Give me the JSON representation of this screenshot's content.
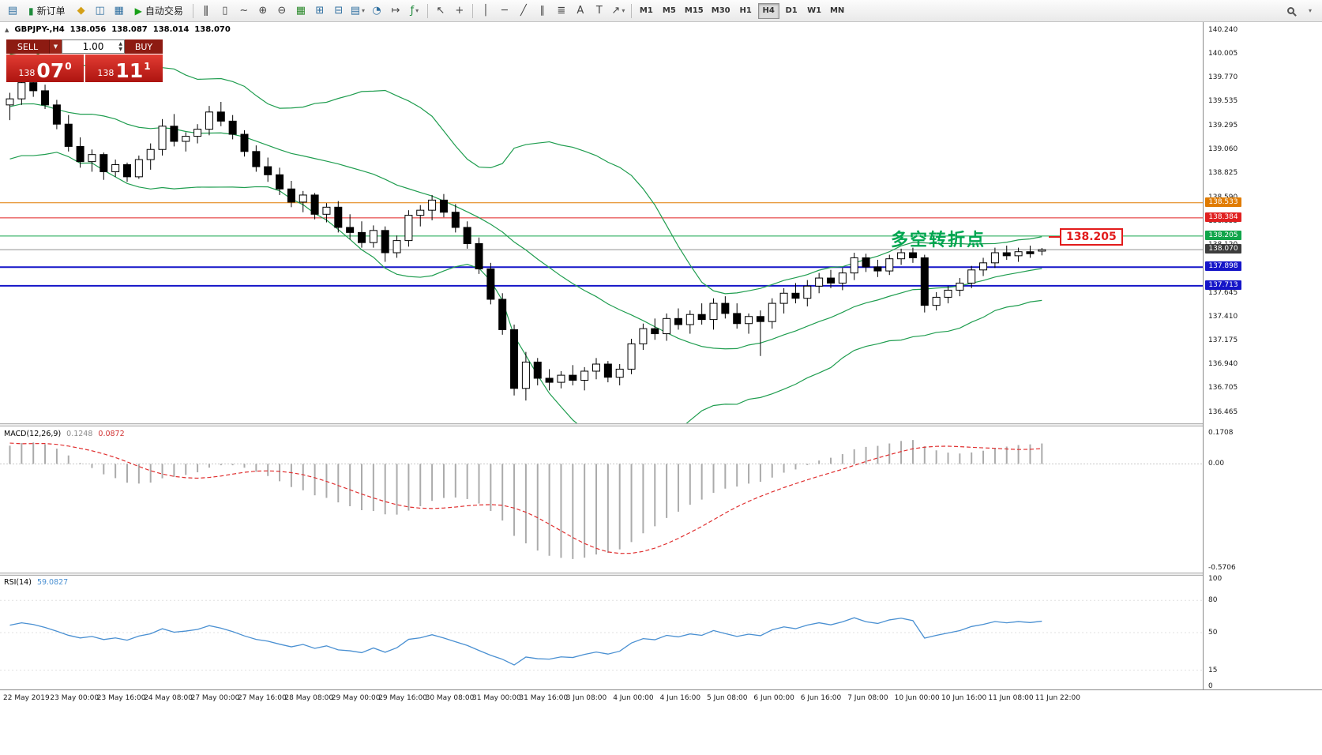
{
  "toolbar": {
    "items": [
      {
        "t": "icon",
        "name": "new-chart-icon",
        "g": "▤",
        "c": "#2f6fa0"
      },
      {
        "t": "btn",
        "name": "new-order-button",
        "g": "▮",
        "c": "#1d8a3a",
        "label": "新订单"
      },
      {
        "t": "icon",
        "name": "mail-icon",
        "g": "◆",
        "c": "#d4a017"
      },
      {
        "t": "icon",
        "name": "market-watch-icon",
        "g": "◫",
        "c": "#2f6fa0"
      },
      {
        "t": "icon",
        "name": "navigator-icon",
        "g": "▦",
        "c": "#2f6fa0"
      },
      {
        "t": "btn",
        "name": "autotrading-button",
        "g": "▶",
        "c": "#18a018",
        "label": "自动交易"
      },
      {
        "t": "sep"
      },
      {
        "t": "icon",
        "name": "bar-chart-icon",
        "g": "ǁ",
        "c": "#444444"
      },
      {
        "t": "icon",
        "name": "candlestick-chart-icon",
        "g": "▯",
        "c": "#444444"
      },
      {
        "t": "icon",
        "name": "line-chart-icon",
        "g": "~",
        "c": "#444444"
      },
      {
        "t": "icon",
        "name": "zoom-in-icon",
        "g": "⊕",
        "c": "#444444"
      },
      {
        "t": "icon",
        "name": "zoom-out-icon",
        "g": "⊖",
        "c": "#444444"
      },
      {
        "t": "icon",
        "name": "grid-icon",
        "g": "▦",
        "c": "#2e8b2e"
      },
      {
        "t": "icon",
        "name": "tile-windows-icon",
        "g": "⊞",
        "c": "#2f6fa0"
      },
      {
        "t": "icon",
        "name": "cascade-windows-icon",
        "g": "⊟",
        "c": "#2f6fa0"
      },
      {
        "t": "icon",
        "name": "new-window-icon",
        "g": "▤",
        "c": "#2f6fa0",
        "dd": true
      },
      {
        "t": "icon",
        "name": "autoscroll-icon",
        "g": "◔",
        "c": "#2f6fa0"
      },
      {
        "t": "icon",
        "name": "chart-shift-icon",
        "g": "↦",
        "c": "#444444"
      },
      {
        "t": "icon",
        "name": "indicators-icon",
        "g": "ƒ",
        "c": "#1d8a3a",
        "dd": true
      },
      {
        "t": "sep"
      },
      {
        "t": "icon",
        "name": "cursor-icon",
        "g": "↖",
        "c": "#444444"
      },
      {
        "t": "icon",
        "name": "crosshair-icon",
        "g": "+",
        "c": "#444444"
      },
      {
        "t": "sep"
      },
      {
        "t": "icon",
        "name": "vertical-line-icon",
        "g": "│",
        "c": "#444444"
      },
      {
        "t": "icon",
        "name": "horizontal-line-icon",
        "g": "─",
        "c": "#444444"
      },
      {
        "t": "icon",
        "name": "trendline-icon",
        "g": "╱",
        "c": "#444444"
      },
      {
        "t": "icon",
        "name": "channel-icon",
        "g": "∥",
        "c": "#444444"
      },
      {
        "t": "icon",
        "name": "fibonacci-icon",
        "g": "≣",
        "c": "#444444"
      },
      {
        "t": "icon",
        "name": "text-icon",
        "g": "A",
        "c": "#444444"
      },
      {
        "t": "icon",
        "name": "label-icon",
        "g": "T",
        "c": "#444444"
      },
      {
        "t": "icon",
        "name": "arrows-icon",
        "g": "↗",
        "c": "#444444",
        "dd": true
      },
      {
        "t": "sep"
      }
    ],
    "timeframes": {
      "items": [
        "M1",
        "M5",
        "M15",
        "M30",
        "H1",
        "H4",
        "D1",
        "W1",
        "MN"
      ],
      "active": "H4"
    }
  },
  "symbol_info": {
    "symbol": "GBPJPY-,H4",
    "open": "138.056",
    "high": "138.087",
    "low": "138.014",
    "close": "138.070"
  },
  "one_click": {
    "sell_label": "SELL",
    "buy_label": "BUY",
    "volume": "1.00",
    "bid": {
      "prefix": "138",
      "main": "07",
      "sup": "0"
    },
    "ask": {
      "prefix": "138",
      "main": "11",
      "sup": "1"
    }
  },
  "annotation": {
    "text": "多空转折点",
    "color": "#00A650"
  },
  "callout": {
    "text": "138.205",
    "color": "#E21B1B"
  },
  "chart_data": {
    "type": "candlestick",
    "symbol": "GBPJPY-",
    "timeframe": "H4",
    "style": {
      "up_fill": "#FFFFFF",
      "down_fill": "#000000",
      "outline": "#000000",
      "bg": "#FFFFFF"
    },
    "price_axis": {
      "view_max": 140.318,
      "view_min": 136.355,
      "ticks": [
        "140.240",
        "140.005",
        "139.770",
        "139.535",
        "139.295",
        "139.060",
        "138.825",
        "138.590",
        "138.355",
        "138.120",
        "137.885",
        "137.645",
        "137.410",
        "137.175",
        "136.940",
        "136.705",
        "136.465"
      ]
    },
    "price_labels": [
      {
        "text": "138.533",
        "price": 138.533,
        "color": "#E07B00"
      },
      {
        "text": "138.384",
        "price": 138.384,
        "color": "#E02020"
      },
      {
        "text": "138.205",
        "price": 138.205,
        "color": "#10A54A"
      },
      {
        "text": "138.070",
        "price": 138.07,
        "color": "#3C3C3C"
      },
      {
        "text": "137.898",
        "price": 137.898,
        "color": "#1515C8"
      },
      {
        "text": "137.713",
        "price": 137.713,
        "color": "#1515C8"
      }
    ],
    "hlines": [
      {
        "price": 138.533,
        "color": "#E07B00",
        "w": 1
      },
      {
        "price": 138.384,
        "color": "#E02020",
        "w": 1
      },
      {
        "price": 138.205,
        "color": "#10A54A",
        "w": 1
      },
      {
        "price": 138.07,
        "color": "#909090",
        "w": 1
      },
      {
        "price": 137.898,
        "color": "#1515C8",
        "w": 2
      },
      {
        "price": 137.713,
        "color": "#1515C8",
        "w": 2
      }
    ],
    "bollinger": {
      "period": 20,
      "deviation": 2,
      "color": "#1F9D4F"
    },
    "indicator_seed": [
      138.9,
      139.2,
      139.6,
      139.9,
      140.0,
      139.7,
      139.3,
      139.0,
      139.2,
      139.5,
      139.8,
      139.6,
      139.3,
      139.1,
      139.4,
      139.7,
      139.6,
      139.4,
      139.3,
      139.5
    ],
    "candles": [
      [
        139.5,
        139.62,
        139.35,
        139.56
      ],
      [
        139.56,
        139.82,
        139.5,
        139.72
      ],
      [
        139.72,
        139.78,
        139.58,
        139.64
      ],
      [
        139.64,
        139.7,
        139.46,
        139.5
      ],
      [
        139.5,
        139.55,
        139.26,
        139.31
      ],
      [
        139.31,
        139.4,
        139.04,
        139.09
      ],
      [
        139.09,
        139.18,
        138.88,
        138.94
      ],
      [
        138.94,
        139.06,
        138.84,
        139.01
      ],
      [
        139.01,
        139.03,
        138.76,
        138.84
      ],
      [
        138.84,
        138.96,
        138.79,
        138.91
      ],
      [
        138.91,
        138.93,
        138.74,
        138.79
      ],
      [
        138.79,
        139.0,
        138.77,
        138.96
      ],
      [
        138.96,
        139.12,
        138.86,
        139.06
      ],
      [
        139.06,
        139.36,
        139.0,
        139.29
      ],
      [
        139.29,
        139.41,
        139.09,
        139.14
      ],
      [
        139.14,
        139.23,
        139.04,
        139.19
      ],
      [
        139.19,
        139.31,
        139.12,
        139.26
      ],
      [
        139.26,
        139.49,
        139.2,
        139.43
      ],
      [
        139.43,
        139.53,
        139.29,
        139.34
      ],
      [
        139.34,
        139.4,
        139.16,
        139.21
      ],
      [
        139.21,
        139.25,
        138.99,
        139.04
      ],
      [
        139.04,
        139.1,
        138.84,
        138.89
      ],
      [
        138.89,
        138.98,
        138.74,
        138.81
      ],
      [
        138.81,
        138.88,
        138.61,
        138.67
      ],
      [
        138.67,
        138.75,
        138.49,
        138.54
      ],
      [
        138.54,
        138.65,
        138.44,
        138.61
      ],
      [
        138.61,
        138.63,
        138.37,
        138.42
      ],
      [
        138.42,
        138.53,
        138.34,
        138.49
      ],
      [
        138.49,
        138.55,
        138.24,
        138.29
      ],
      [
        138.29,
        138.42,
        138.17,
        138.24
      ],
      [
        138.24,
        138.35,
        138.09,
        138.14
      ],
      [
        138.14,
        138.31,
        138.09,
        138.26
      ],
      [
        138.26,
        138.3,
        137.95,
        138.04
      ],
      [
        138.04,
        138.21,
        137.99,
        138.16
      ],
      [
        138.16,
        138.46,
        138.1,
        138.41
      ],
      [
        138.41,
        138.51,
        138.3,
        138.46
      ],
      [
        138.46,
        138.61,
        138.36,
        138.56
      ],
      [
        138.56,
        138.62,
        138.39,
        138.44
      ],
      [
        138.44,
        138.52,
        138.24,
        138.29
      ],
      [
        138.29,
        138.35,
        138.08,
        138.13
      ],
      [
        138.13,
        138.19,
        137.83,
        137.88
      ],
      [
        137.88,
        137.94,
        137.53,
        137.58
      ],
      [
        137.58,
        137.64,
        137.23,
        137.28
      ],
      [
        137.28,
        137.33,
        136.63,
        136.7
      ],
      [
        136.7,
        137.06,
        136.58,
        136.96
      ],
      [
        136.96,
        137.0,
        136.73,
        136.8
      ],
      [
        136.8,
        136.89,
        136.68,
        136.76
      ],
      [
        136.76,
        136.87,
        136.7,
        136.83
      ],
      [
        136.83,
        136.93,
        136.73,
        136.78
      ],
      [
        136.78,
        136.91,
        136.68,
        136.87
      ],
      [
        136.87,
        137.0,
        136.79,
        136.94
      ],
      [
        136.94,
        136.97,
        136.76,
        136.81
      ],
      [
        136.81,
        136.94,
        136.73,
        136.89
      ],
      [
        136.89,
        137.19,
        136.84,
        137.14
      ],
      [
        137.14,
        137.34,
        137.08,
        137.29
      ],
      [
        137.29,
        137.39,
        137.18,
        137.24
      ],
      [
        137.24,
        137.44,
        137.17,
        137.39
      ],
      [
        137.39,
        137.49,
        137.28,
        137.33
      ],
      [
        137.33,
        137.47,
        137.24,
        137.43
      ],
      [
        137.43,
        137.54,
        137.33,
        137.38
      ],
      [
        137.38,
        137.59,
        137.28,
        137.54
      ],
      [
        137.54,
        137.61,
        137.39,
        137.44
      ],
      [
        137.44,
        137.54,
        137.29,
        137.34
      ],
      [
        137.34,
        137.44,
        137.24,
        137.41
      ],
      [
        137.41,
        137.47,
        137.02,
        137.36
      ],
      [
        137.36,
        137.59,
        137.29,
        137.54
      ],
      [
        137.54,
        137.69,
        137.44,
        137.64
      ],
      [
        137.64,
        137.74,
        137.54,
        137.59
      ],
      [
        137.59,
        137.77,
        137.51,
        137.71
      ],
      [
        137.71,
        137.84,
        137.64,
        137.79
      ],
      [
        137.79,
        137.87,
        137.69,
        137.74
      ],
      [
        137.74,
        137.89,
        137.67,
        137.84
      ],
      [
        137.84,
        138.04,
        137.77,
        137.99
      ],
      [
        137.99,
        138.03,
        137.85,
        137.9
      ],
      [
        137.9,
        137.97,
        137.8,
        137.86
      ],
      [
        137.86,
        138.02,
        137.82,
        137.98
      ],
      [
        137.98,
        138.08,
        137.92,
        138.04
      ],
      [
        138.04,
        138.09,
        137.94,
        137.99
      ],
      [
        137.99,
        138.02,
        137.45,
        137.52
      ],
      [
        137.52,
        137.65,
        137.47,
        137.6
      ],
      [
        137.6,
        137.71,
        137.54,
        137.67
      ],
      [
        137.67,
        137.79,
        137.61,
        137.74
      ],
      [
        137.74,
        137.91,
        137.69,
        137.87
      ],
      [
        137.87,
        137.99,
        137.81,
        137.94
      ],
      [
        137.94,
        138.09,
        137.89,
        138.04
      ],
      [
        138.04,
        138.11,
        137.97,
        138.01
      ],
      [
        138.01,
        138.09,
        137.95,
        138.05
      ],
      [
        138.05,
        138.11,
        137.99,
        138.03
      ],
      [
        138.056,
        138.087,
        138.014,
        138.07
      ]
    ],
    "time_labels": [
      "22 May 2019",
      "23 May 00:00",
      "23 May 16:00",
      "24 May 08:00",
      "27 May 00:00",
      "27 May 16:00",
      "28 May 08:00",
      "29 May 00:00",
      "29 May 16:00",
      "30 May 08:00",
      "31 May 00:00",
      "31 May 16:00",
      "3 Jun 08:00",
      "4 Jun 00:00",
      "4 Jun 16:00",
      "5 Jun 08:00",
      "6 Jun 00:00",
      "6 Jun 16:00",
      "7 Jun 08:00",
      "10 Jun 00:00",
      "10 Jun 16:00",
      "11 Jun 08:00",
      "11 Jun 22:00"
    ],
    "macd": {
      "label": "MACD(12,26,9)",
      "value_main": "0.1248",
      "value_signal": "0.0872",
      "axis": {
        "max": "0.1708",
        "zero": "0.00",
        "min": "-0.5706"
      },
      "hist_color": "#ABABAB",
      "signal_color": "#E03030",
      "params": {
        "fast": 12,
        "slow": 26,
        "signal": 9
      }
    },
    "rsi": {
      "label": "RSI(14)",
      "value": "59.0827",
      "period": 14,
      "axis_ticks": [
        "100",
        "80",
        "50",
        "15",
        "0"
      ],
      "color": "#4A90D2"
    }
  }
}
